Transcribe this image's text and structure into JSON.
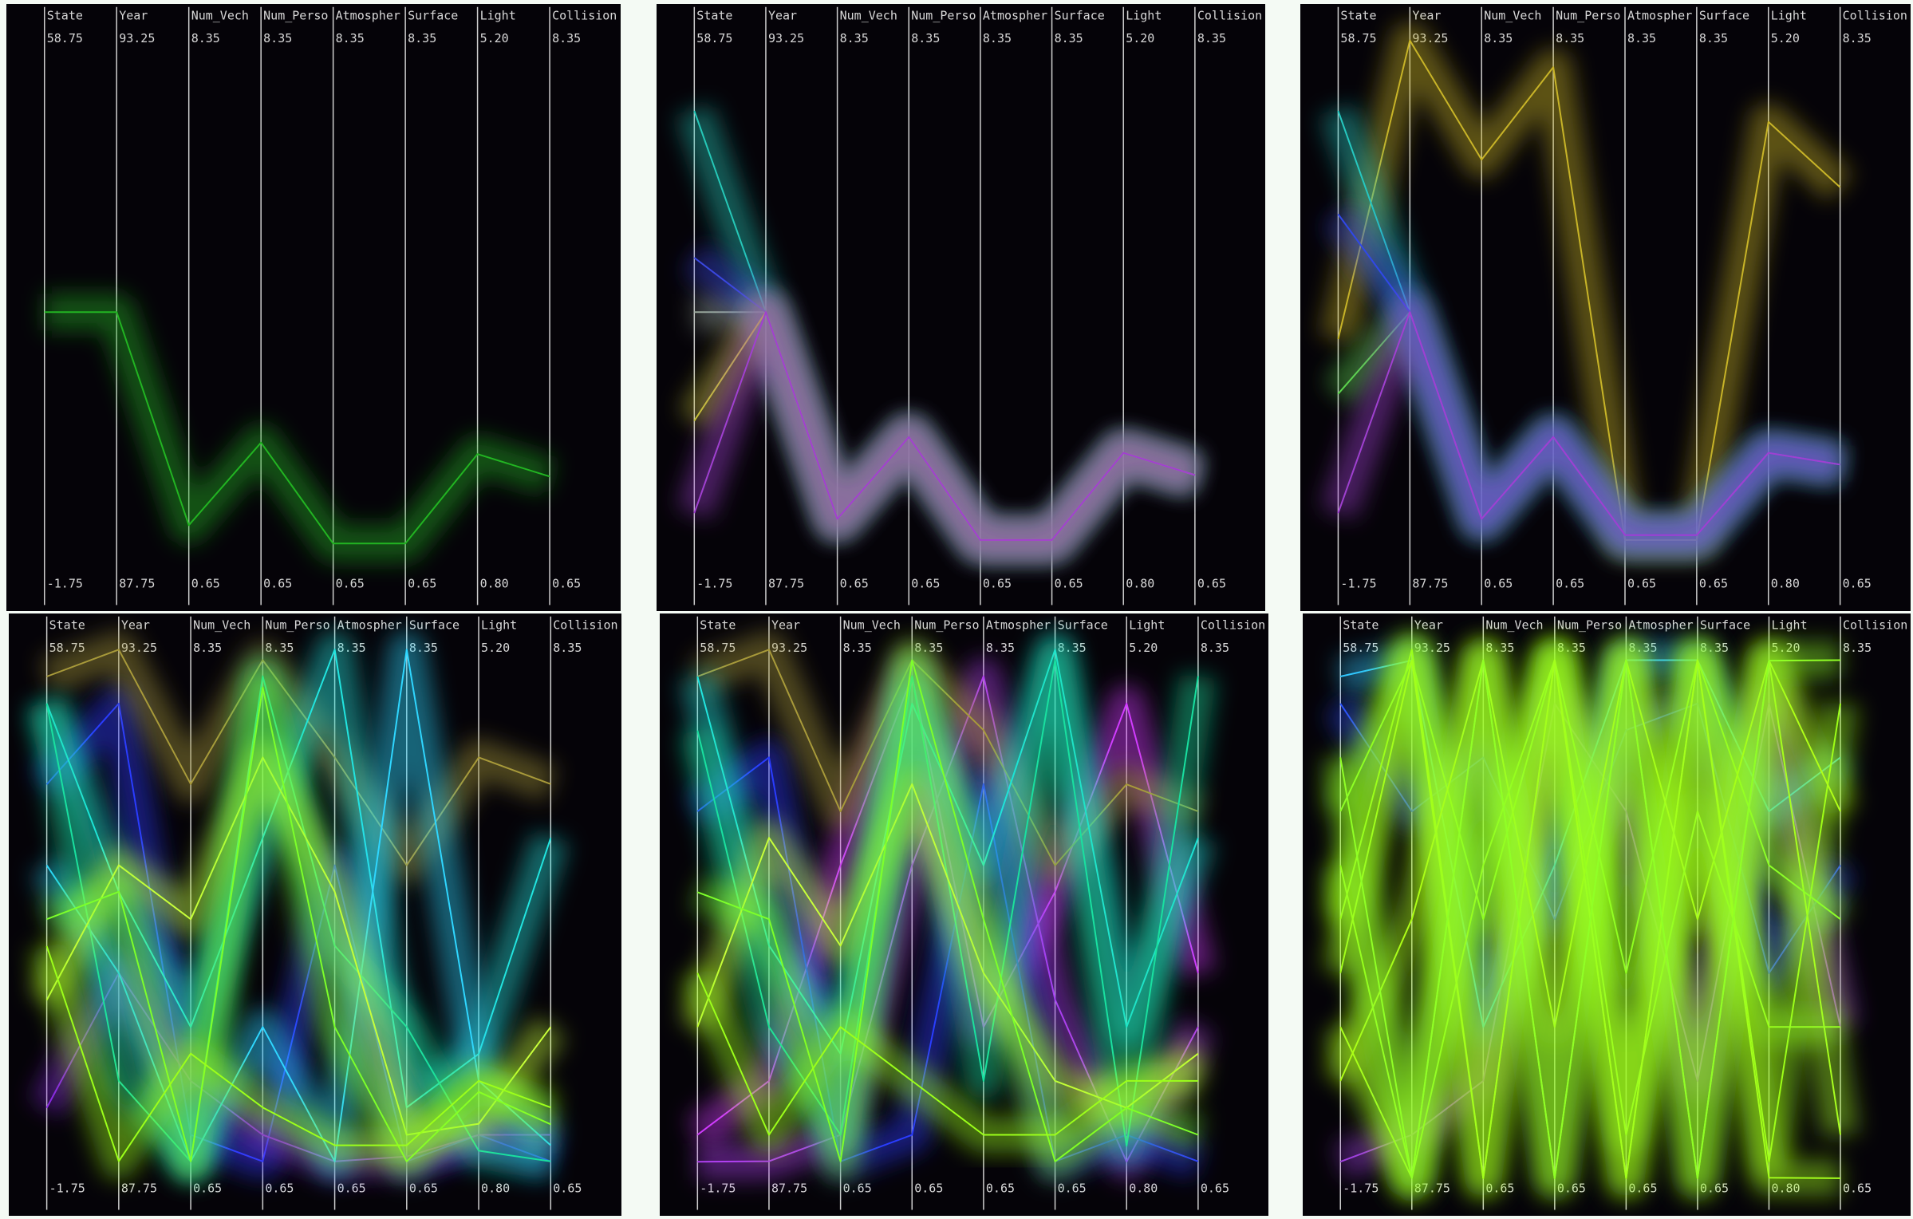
{
  "chart_data": [
    {
      "type": "parallel",
      "dimensions": [
        {
          "name": "State",
          "ylim": [
            -1.75,
            58.75
          ],
          "yticks": [
            -1.75,
            58.75
          ]
        },
        {
          "name": "Year",
          "ylim": [
            87.75,
            93.25
          ],
          "yticks": [
            87.75,
            93.25
          ]
        },
        {
          "name": "Num_Vech",
          "ylim": [
            0.65,
            8.35
          ],
          "yticks": [
            0.65,
            8.35
          ]
        },
        {
          "name": "Num_Perso",
          "ylim": [
            0.65,
            8.35
          ],
          "yticks": [
            0.65,
            8.35
          ]
        },
        {
          "name": "Atmospher",
          "ylim": [
            0.65,
            8.35
          ],
          "yticks": [
            0.65,
            8.35
          ]
        },
        {
          "name": "Surface",
          "ylim": [
            0.65,
            8.35
          ],
          "yticks": [
            0.65,
            8.35
          ]
        },
        {
          "name": "Light",
          "ylim": [
            0.8,
            5.2
          ],
          "yticks": [
            {
              "value": 0.8,
              "label": "0.80"
            },
            {
              "value": 5.2,
              "label": "5.20"
            }
          ]
        },
        {
          "name": "Collision",
          "ylim": [
            0.65,
            8.35
          ],
          "yticks": [
            0.65,
            8.35
          ]
        }
      ],
      "series": [
        {
          "color": "#22b422",
          "values": [
            28.5,
            90.5,
            1.48,
            2.65,
            1.22,
            1.22,
            1.85,
            2.17
          ]
        }
      ]
    },
    {
      "type": "parallel",
      "dimensions": [
        {
          "name": "State",
          "ylim": [
            -1.75,
            58.75
          ],
          "yticks": [
            -1.75,
            58.75
          ]
        },
        {
          "name": "Year",
          "ylim": [
            87.75,
            93.25
          ],
          "yticks": [
            87.75,
            93.25
          ]
        },
        {
          "name": "Num_Vech",
          "ylim": [
            0.65,
            8.35
          ],
          "yticks": [
            0.65,
            8.35
          ]
        },
        {
          "name": "Num_Perso",
          "ylim": [
            0.65,
            8.35
          ],
          "yticks": [
            0.65,
            8.35
          ]
        },
        {
          "name": "Atmospher",
          "ylim": [
            0.65,
            8.35
          ],
          "yticks": [
            0.65,
            8.35
          ]
        },
        {
          "name": "Surface",
          "ylim": [
            0.65,
            8.35
          ],
          "yticks": [
            0.65,
            8.35
          ]
        },
        {
          "name": "Light",
          "ylim": [
            0.8,
            5.2
          ],
          "yticks": [
            {
              "value": 0.8,
              "label": "0.80"
            },
            {
              "value": 5.2,
              "label": "5.20"
            }
          ]
        },
        {
          "name": "Collision",
          "ylim": [
            0.65,
            8.35
          ],
          "yticks": [
            0.65,
            8.35
          ]
        }
      ],
      "series": [
        {
          "color": "#9aa89a",
          "values": [
            28.5,
            90.5,
            1.57,
            2.73,
            1.27,
            1.27,
            1.86,
            2.19
          ]
        },
        {
          "color": "#26c8b8",
          "values": [
            50.9,
            90.5,
            1.57,
            2.73,
            1.27,
            1.27,
            1.86,
            2.19
          ]
        },
        {
          "color": "#3a48e0",
          "values": [
            34.55,
            90.5,
            1.57,
            2.73,
            1.27,
            1.27,
            1.86,
            2.19
          ]
        },
        {
          "color": "#c8c830",
          "values": [
            16.4,
            90.5,
            1.57,
            2.73,
            1.27,
            1.27,
            1.86,
            2.19
          ]
        },
        {
          "color": "#a040d0",
          "values": [
            6.12,
            90.5,
            1.57,
            2.73,
            1.27,
            1.27,
            1.86,
            2.19
          ]
        }
      ]
    },
    {
      "type": "parallel",
      "dimensions": [
        {
          "name": "State",
          "ylim": [
            -1.75,
            58.75
          ],
          "yticks": [
            -1.75,
            58.75
          ]
        },
        {
          "name": "Year",
          "ylim": [
            87.75,
            93.25
          ],
          "yticks": [
            87.75,
            93.25
          ]
        },
        {
          "name": "Num_Vech",
          "ylim": [
            0.65,
            8.35
          ],
          "yticks": [
            0.65,
            8.35
          ]
        },
        {
          "name": "Num_Perso",
          "ylim": [
            0.65,
            8.35
          ],
          "yticks": [
            0.65,
            8.35
          ]
        },
        {
          "name": "Atmospher",
          "ylim": [
            0.65,
            8.35
          ],
          "yticks": [
            0.65,
            8.35
          ]
        },
        {
          "name": "Surface",
          "ylim": [
            0.65,
            8.35
          ],
          "yticks": [
            0.65,
            8.35
          ]
        },
        {
          "name": "Light",
          "ylim": [
            0.8,
            5.2
          ],
          "yticks": [
            {
              "value": 0.8,
              "label": "0.80"
            },
            {
              "value": 5.2,
              "label": "5.20"
            }
          ]
        },
        {
          "name": "Collision",
          "ylim": [
            0.65,
            8.35
          ],
          "yticks": [
            0.65,
            8.35
          ]
        }
      ],
      "series": [
        {
          "color": "#c8b428",
          "values": [
            25.5,
            93.25,
            6.66,
            7.97,
            1.27,
            1.27,
            4.54,
            6.27
          ]
        },
        {
          "color": "#5ad84a",
          "values": [
            19.4,
            90.5,
            1.57,
            2.73,
            1.34,
            1.34,
            1.86,
            2.34
          ]
        },
        {
          "color": "#26c8c0",
          "values": [
            50.9,
            90.5,
            1.57,
            2.73,
            1.34,
            1.34,
            1.86,
            2.34
          ]
        },
        {
          "color": "#3048e8",
          "values": [
            39.4,
            90.5,
            1.57,
            2.73,
            1.34,
            1.34,
            1.86,
            2.34
          ]
        },
        {
          "color": "#a040d0",
          "values": [
            6.12,
            90.5,
            1.57,
            2.73,
            1.34,
            1.34,
            1.86,
            2.34
          ]
        }
      ]
    },
    {
      "type": "parallel",
      "dimensions": [
        {
          "name": "State",
          "ylim": [
            -1.75,
            58.75
          ],
          "yticks": [
            -1.75,
            58.75
          ]
        },
        {
          "name": "Year",
          "ylim": [
            87.75,
            93.25
          ],
          "yticks": [
            87.75,
            93.25
          ]
        },
        {
          "name": "Num_Vech",
          "ylim": [
            0.65,
            8.35
          ],
          "yticks": [
            0.65,
            8.35
          ]
        },
        {
          "name": "Num_Perso",
          "ylim": [
            0.65,
            8.35
          ],
          "yticks": [
            0.65,
            8.35
          ]
        },
        {
          "name": "Atmospher",
          "ylim": [
            0.65,
            8.35
          ],
          "yticks": [
            0.65,
            8.35
          ]
        },
        {
          "name": "Surface",
          "ylim": [
            0.65,
            8.35
          ],
          "yticks": [
            0.65,
            8.35
          ]
        },
        {
          "name": "Light",
          "ylim": [
            0.8,
            5.2
          ],
          "yticks": [
            {
              "value": 0.8,
              "label": "0.80"
            },
            {
              "value": 5.2,
              "label": "5.20"
            }
          ]
        },
        {
          "name": "Collision",
          "ylim": [
            0.65,
            8.35
          ],
          "yticks": [
            0.65,
            8.35
          ]
        }
      ],
      "series": [
        {
          "color": "#2a3cff",
          "values": [
            43.63,
            92.7,
            1.42,
            1.04,
            5.27,
            1.04,
            1.24,
            1.04
          ]
        },
        {
          "color": "#8a2be2",
          "values": [
            7.33,
            89.95,
            2.19,
            1.42,
            1.04,
            1.11,
            1.24,
            1.42
          ]
        },
        {
          "color": "#a89a3a",
          "values": [
            55.73,
            93.25,
            6.43,
            8.2,
            6.81,
            5.27,
            4.32,
            6.43
          ]
        },
        {
          "color": "#22e5e0",
          "values": [
            52.7,
            90.78,
            2.96,
            5.66,
            8.35,
            1.81,
            1.9,
            5.66
          ]
        },
        {
          "color": "#2fd6ff",
          "values": [
            34.55,
            89.95,
            1.04,
            2.96,
            1.04,
            8.35,
            1.68,
            1.27
          ]
        },
        {
          "color": "#19e0a0",
          "values": [
            52.7,
            88.85,
            1.04,
            7.97,
            4.12,
            2.96,
            1.11,
            1.04
          ]
        },
        {
          "color": "#c8ff3a",
          "values": [
            19.43,
            91.05,
            4.5,
            6.81,
            4.89,
            1.42,
            1.33,
            2.96
          ]
        },
        {
          "color": "#7dff2a",
          "values": [
            28.5,
            90.78,
            1.04,
            7.81,
            2.96,
            1.04,
            1.59,
            1.57
          ]
        },
        {
          "color": "#9cff1a",
          "values": [
            25.48,
            88.03,
            2.58,
            1.81,
            1.27,
            1.27,
            1.68,
            1.81
          ]
        }
      ]
    },
    {
      "type": "parallel",
      "dimensions": [
        {
          "name": "State",
          "ylim": [
            -1.75,
            58.75
          ],
          "yticks": [
            -1.75,
            58.75
          ]
        },
        {
          "name": "Year",
          "ylim": [
            87.75,
            93.25
          ],
          "yticks": [
            87.75,
            93.25
          ]
        },
        {
          "name": "Num_Vech",
          "ylim": [
            0.65,
            8.35
          ],
          "yticks": [
            0.65,
            8.35
          ]
        },
        {
          "name": "Num_Perso",
          "ylim": [
            0.65,
            8.35
          ],
          "yticks": [
            0.65,
            8.35
          ]
        },
        {
          "name": "Atmospher",
          "ylim": [
            0.65,
            8.35
          ],
          "yticks": [
            0.65,
            8.35
          ]
        },
        {
          "name": "Surface",
          "ylim": [
            0.65,
            8.35
          ],
          "yticks": [
            0.65,
            8.35
          ]
        },
        {
          "name": "Light",
          "ylim": [
            0.8,
            5.2
          ],
          "yticks": [
            {
              "value": 0.8,
              "label": "0.80"
            },
            {
              "value": 5.2,
              "label": "5.20"
            }
          ]
        },
        {
          "name": "Collision",
          "ylim": [
            0.65,
            8.35
          ],
          "yticks": [
            0.65,
            8.35
          ]
        }
      ],
      "series": [
        {
          "color": "#d23cff",
          "values": [
            4.3,
            88.85,
            5.27,
            7.97,
            2.96,
            4.89,
            4.76,
            3.73
          ]
        },
        {
          "color": "#b040f0",
          "values": [
            1.28,
            88.03,
            1.42,
            5.27,
            7.97,
            3.35,
            1.02,
            2.96
          ]
        },
        {
          "color": "#2a3cff",
          "values": [
            40.6,
            92.15,
            1.04,
            1.42,
            6.43,
            1.04,
            1.24,
            1.04
          ]
        },
        {
          "color": "#a89a3a",
          "values": [
            55.73,
            93.25,
            6.04,
            8.2,
            7.2,
            5.27,
            4.1,
            6.04
          ]
        },
        {
          "color": "#22e5e0",
          "values": [
            55.73,
            90.23,
            2.58,
            7.58,
            5.27,
            8.35,
            2.12,
            5.66
          ]
        },
        {
          "color": "#19e0a0",
          "values": [
            49.68,
            89.4,
            1.42,
            7.97,
            2.19,
            8.2,
            1.15,
            7.97
          ]
        },
        {
          "color": "#c8ff3a",
          "values": [
            16.4,
            91.33,
            4.12,
            6.43,
            3.73,
            2.19,
            1.46,
            2.58
          ]
        },
        {
          "color": "#7dff2a",
          "values": [
            31.53,
            90.5,
            1.04,
            8.2,
            4.5,
            1.04,
            1.46,
            1.42
          ]
        },
        {
          "color": "#9cff1a",
          "values": [
            22.45,
            88.3,
            2.96,
            2.19,
            1.42,
            1.42,
            1.68,
            2.19
          ]
        }
      ]
    },
    {
      "type": "parallel",
      "dimensions": [
        {
          "name": "State",
          "ylim": [
            -1.75,
            58.75
          ],
          "yticks": [
            -1.75,
            58.75
          ]
        },
        {
          "name": "Year",
          "ylim": [
            87.75,
            93.25
          ],
          "yticks": [
            87.75,
            93.25
          ]
        },
        {
          "name": "Num_Vech",
          "ylim": [
            0.65,
            8.35
          ],
          "yticks": [
            0.65,
            8.35
          ]
        },
        {
          "name": "Num_Perso",
          "ylim": [
            0.65,
            8.35
          ],
          "yticks": [
            0.65,
            8.35
          ]
        },
        {
          "name": "Atmospher",
          "ylim": [
            0.65,
            8.35
          ],
          "yticks": [
            0.65,
            8.35
          ]
        },
        {
          "name": "Surface",
          "ylim": [
            0.65,
            8.35
          ],
          "yticks": [
            0.65,
            8.35
          ]
        },
        {
          "name": "Light",
          "ylim": [
            0.8,
            5.2
          ],
          "yticks": [
            {
              "value": 0.8,
              "label": "0.80"
            },
            {
              "value": 5.2,
              "label": "5.20"
            }
          ]
        },
        {
          "name": "Collision",
          "ylim": [
            0.65,
            8.35
          ],
          "yticks": [
            0.65,
            8.35
          ]
        }
      ],
      "series": [
        {
          "color": "#a040e0",
          "values": [
            1.28,
            88.3,
            2.19,
            7.58,
            6.04,
            2.19,
            4.76,
            2.96
          ]
        },
        {
          "color": "#2a50ff",
          "values": [
            52.7,
            91.6,
            6.81,
            4.5,
            7.2,
            7.58,
            2.56,
            5.27
          ]
        },
        {
          "color": "#30c8ff",
          "values": [
            55.73,
            93.14,
            2.96,
            5.27,
            8.2,
            8.2,
            3.88,
            6.81
          ]
        },
        {
          "color": "#9cff1a",
          "values": [
            28.5,
            93.25,
            0.8,
            8.2,
            0.8,
            8.2,
            1.02,
            7.58
          ]
        },
        {
          "color": "#a8ff20",
          "values": [
            16.4,
            87.86,
            8.2,
            0.8,
            8.2,
            0.8,
            5.11,
            1.42
          ]
        },
        {
          "color": "#8cff28",
          "values": [
            40.6,
            93.14,
            4.5,
            8.2,
            3.73,
            8.2,
            3.44,
            4.5
          ]
        },
        {
          "color": "#b0ff18",
          "values": [
            10.35,
            90.5,
            8.2,
            2.96,
            8.2,
            4.5,
            5.11,
            6.04
          ]
        },
        {
          "color": "#96ff22",
          "values": [
            34.55,
            87.86,
            5.27,
            8.2,
            1.42,
            6.04,
            2.12,
            2.96
          ]
        },
        {
          "color": "#a4ff1c",
          "values": [
            22.45,
            93.14,
            0.8,
            8.2,
            0.8,
            8.2,
            0.89,
            0.8
          ]
        },
        {
          "color": "#90ff26",
          "values": [
            46.65,
            87.86,
            8.2,
            0.8,
            8.2,
            0.8,
            5.11,
            8.2
          ]
        }
      ]
    }
  ]
}
